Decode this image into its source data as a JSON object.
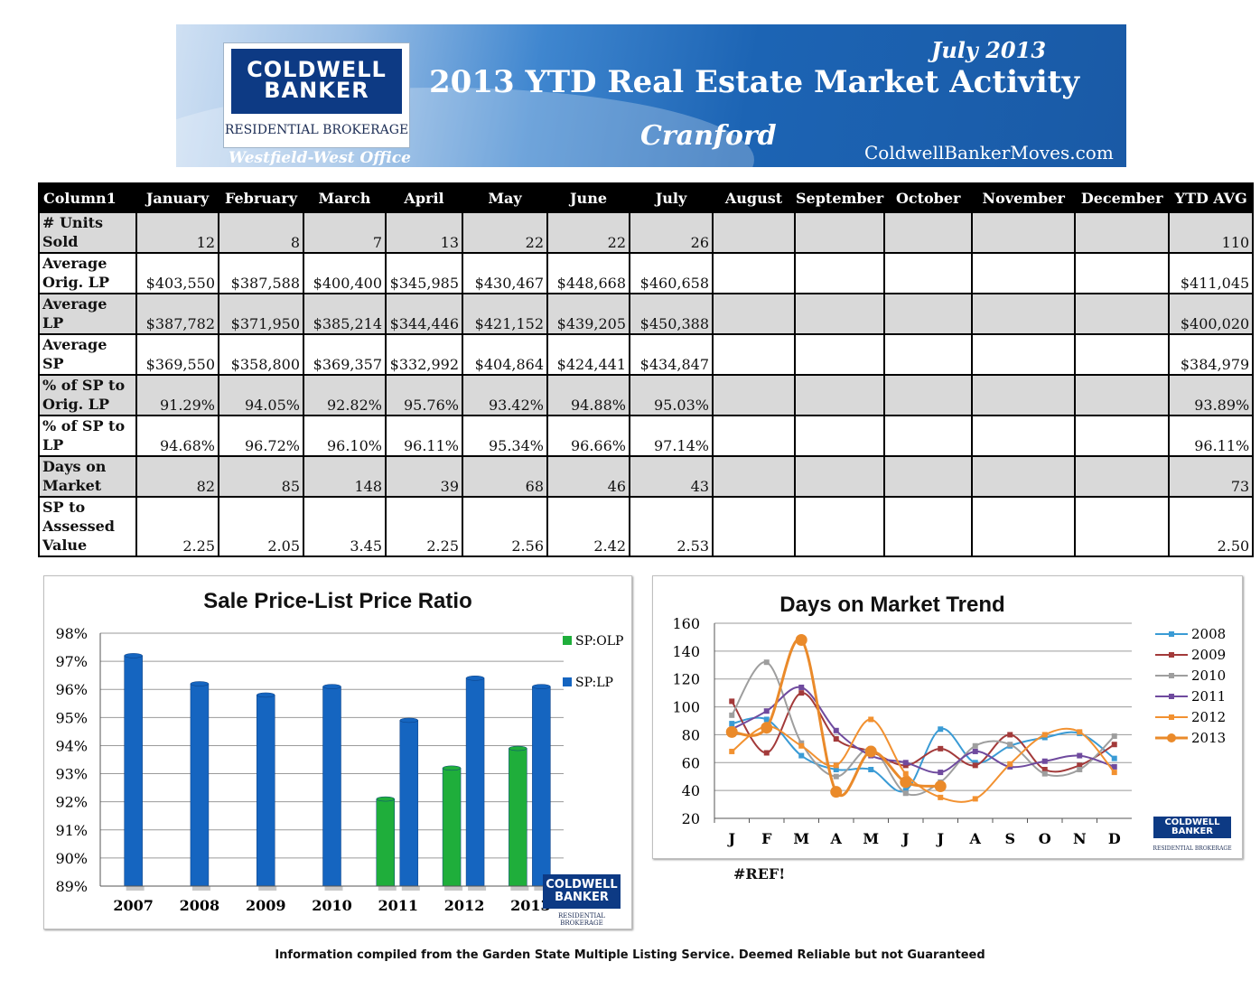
{
  "header": {
    "brand_line1": "COLDWELL",
    "brand_line2": "BANKER",
    "brand_sub": "RESIDENTIAL BROKERAGE",
    "office": "Westfield-West Office",
    "month": "July 2013",
    "title": "2013 YTD Real Estate Market Activity",
    "town": "Cranford",
    "website": "ColdwellBankerMoves.com"
  },
  "table": {
    "columns": [
      "Column1",
      "January",
      "February",
      "March",
      "April",
      "May",
      "June",
      "July",
      "August",
      "September",
      "October",
      "November",
      "December",
      "YTD AVG"
    ],
    "rows": [
      {
        "label": "# Units Sold",
        "values": [
          "12",
          "8",
          "7",
          "13",
          "22",
          "22",
          "26",
          "",
          "",
          "",
          "",
          "",
          "110"
        ]
      },
      {
        "label": "Average Orig. LP",
        "values": [
          "$403,550",
          "$387,588",
          "$400,400",
          "$345,985",
          "$430,467",
          "$448,668",
          "$460,658",
          "",
          "",
          "",
          "",
          "",
          "$411,045"
        ]
      },
      {
        "label": "Average LP",
        "values": [
          "$387,782",
          "$371,950",
          "$385,214",
          "$344,446",
          "$421,152",
          "$439,205",
          "$450,388",
          "",
          "",
          "",
          "",
          "",
          "$400,020"
        ]
      },
      {
        "label": "Average SP",
        "values": [
          "$369,550",
          "$358,800",
          "$369,357",
          "$332,992",
          "$404,864",
          "$424,441",
          "$434,847",
          "",
          "",
          "",
          "",
          "",
          "$384,979"
        ]
      },
      {
        "label": "% of SP to Orig. LP",
        "values": [
          "91.29%",
          "94.05%",
          "92.82%",
          "95.76%",
          "93.42%",
          "94.88%",
          "95.03%",
          "",
          "",
          "",
          "",
          "",
          "93.89%"
        ]
      },
      {
        "label": "% of SP to LP",
        "values": [
          "94.68%",
          "96.72%",
          "96.10%",
          "96.11%",
          "95.34%",
          "96.66%",
          "97.14%",
          "",
          "",
          "",
          "",
          "",
          "96.11%"
        ]
      },
      {
        "label": "Days on Market",
        "values": [
          "82",
          "85",
          "148",
          "39",
          "68",
          "46",
          "43",
          "",
          "",
          "",
          "",
          "",
          "73"
        ]
      },
      {
        "label": "SP to Assessed Value",
        "values": [
          "2.25",
          "2.05",
          "3.45",
          "2.25",
          "2.56",
          "2.42",
          "2.53",
          "",
          "",
          "",
          "",
          "",
          "2.50"
        ]
      }
    ]
  },
  "chart_data": [
    {
      "type": "bar",
      "title": "Sale Price-List Price Ratio",
      "categories": [
        "2007",
        "2008",
        "2009",
        "2010",
        "2011",
        "2012",
        "2013"
      ],
      "series": [
        {
          "name": "SP:OLP",
          "color": "#1fae3b",
          "values": [
            null,
            null,
            null,
            null,
            92.1,
            93.2,
            93.9
          ]
        },
        {
          "name": "SP:LP",
          "color": "#1565c0",
          "values": [
            97.2,
            96.2,
            95.8,
            96.1,
            94.9,
            96.4,
            96.1
          ]
        }
      ],
      "yticks": [
        "89%",
        "90%",
        "91%",
        "92%",
        "93%",
        "94%",
        "95%",
        "96%",
        "97%",
        "98%"
      ],
      "ylim": [
        89,
        98
      ],
      "legend_position": "right"
    },
    {
      "type": "line",
      "title": "Days on Market Trend",
      "categories": [
        "J",
        "F",
        "M",
        "A",
        "M",
        "J",
        "J",
        "A",
        "S",
        "O",
        "N",
        "D"
      ],
      "ylim": [
        20,
        160
      ],
      "yticks": [
        "20",
        "40",
        "60",
        "80",
        "100",
        "120",
        "140",
        "160"
      ],
      "legend_position": "right",
      "series": [
        {
          "name": "2008",
          "color": "#3a9bd5",
          "values": [
            88,
            91,
            65,
            55,
            55,
            40,
            84,
            60,
            72,
            78,
            81,
            63
          ]
        },
        {
          "name": "2009",
          "color": "#a33a3a",
          "values": [
            104,
            67,
            110,
            77,
            68,
            58,
            70,
            58,
            80,
            55,
            58,
            73
          ]
        },
        {
          "name": "2010",
          "color": "#9e9e9e",
          "values": [
            94,
            132,
            74,
            50,
            70,
            38,
            46,
            72,
            73,
            52,
            55,
            79
          ]
        },
        {
          "name": "2011",
          "color": "#6f4a9e",
          "values": [
            84,
            97,
            114,
            83,
            65,
            60,
            53,
            68,
            57,
            61,
            65,
            57
          ]
        },
        {
          "name": "2012",
          "color": "#f29130",
          "values": [
            68,
            86,
            72,
            58,
            91,
            52,
            35,
            34,
            59,
            80,
            82,
            53
          ]
        },
        {
          "name": "2013",
          "color": "#ea8a2a",
          "values": [
            82,
            85,
            148,
            39,
            68,
            46,
            43,
            null,
            null,
            null,
            null,
            null
          ]
        }
      ]
    }
  ],
  "notes": {
    "ref": "#REF!",
    "footer": "Information compiled from the Garden State Multiple Listing Service. Deemed Reliable but not Guaranteed"
  }
}
